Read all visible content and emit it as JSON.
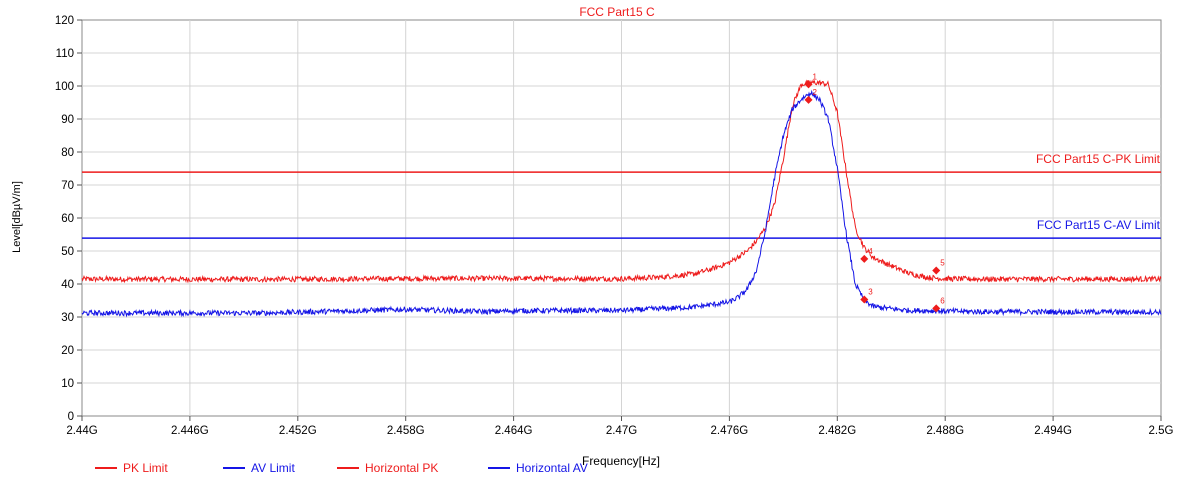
{
  "chart_data": {
    "type": "line",
    "title": "FCC Part15 C",
    "xlabel": "Frequency[Hz]",
    "ylabel": "Level[dBµV/m]",
    "x_ticks": [
      "2.44G",
      "2.446G",
      "2.452G",
      "2.458G",
      "2.464G",
      "2.47G",
      "2.476G",
      "2.482G",
      "2.488G",
      "2.494G",
      "2.5G"
    ],
    "y_ticks": [
      "0",
      "10",
      "20",
      "30",
      "40",
      "50",
      "60",
      "70",
      "80",
      "90",
      "100",
      "110",
      "120"
    ],
    "xlim": [
      2.44,
      2.5
    ],
    "ylim": [
      0,
      120
    ],
    "x_unit": "GHz",
    "grid": true,
    "legend_position": "bottom-left",
    "limit_lines": [
      {
        "name": "PK Limit",
        "label": "FCC Part15 C-PK Limit",
        "value": 73.9,
        "color": "#ee1c1c"
      },
      {
        "name": "AV Limit",
        "label": "FCC Part15 C-AV Limit",
        "value": 53.9,
        "color": "#1515e6"
      }
    ],
    "series": [
      {
        "name": "Horizontal PK",
        "color": "#ee1c1c",
        "x": [
          2.44,
          2.45,
          2.46,
          2.47,
          2.472,
          2.474,
          2.475,
          2.476,
          2.477,
          2.4775,
          2.478,
          2.4785,
          2.479,
          2.4795,
          2.48,
          2.4805,
          2.481,
          2.4815,
          2.482,
          2.4825,
          2.483,
          2.4835,
          2.484,
          2.485,
          2.486,
          2.487,
          2.488,
          2.49,
          2.5
        ],
        "y": [
          41.5,
          41.4,
          41.7,
          41.6,
          42,
          43,
          44.5,
          46.5,
          50,
          53,
          57,
          64,
          78,
          94,
          100.5,
          101,
          101,
          100.5,
          92,
          74,
          57,
          51,
          48,
          45.5,
          43.2,
          42,
          41.6,
          41.5,
          41.5
        ]
      },
      {
        "name": "Horizontal AV",
        "color": "#1515e6",
        "x": [
          2.44,
          2.45,
          2.458,
          2.4625,
          2.464,
          2.47,
          2.474,
          2.476,
          2.4765,
          2.477,
          2.4775,
          2.478,
          2.4785,
          2.479,
          2.4795,
          2.48,
          2.4805,
          2.481,
          2.4815,
          2.482,
          2.4825,
          2.483,
          2.4835,
          2.484,
          2.485,
          2.486,
          2.49,
          2.5
        ],
        "y": [
          31.2,
          31.2,
          32.3,
          31.6,
          31.9,
          32,
          33,
          34.5,
          36,
          38.5,
          44,
          56,
          72,
          85,
          93,
          96,
          98,
          96,
          90,
          75,
          55,
          40,
          35,
          33.2,
          32.5,
          32,
          31.6,
          31.5
        ]
      }
    ],
    "markers": [
      {
        "label": "1",
        "x": 2.4804,
        "y": 100.5,
        "series": "Horizontal PK"
      },
      {
        "label": "2",
        "x": 2.4804,
        "y": 95.8,
        "series": "Horizontal AV"
      },
      {
        "label": "3",
        "x": 2.4835,
        "y": 35.3,
        "series": "Horizontal AV"
      },
      {
        "label": "4",
        "x": 2.4835,
        "y": 47.6,
        "series": "Horizontal PK"
      },
      {
        "label": "5",
        "x": 2.4875,
        "y": 44.1,
        "series": "Horizontal PK"
      },
      {
        "label": "6",
        "x": 2.4875,
        "y": 32.6,
        "series": "Horizontal AV"
      }
    ]
  },
  "legend": {
    "items": [
      {
        "label": "PK Limit",
        "color": "#ee1c1c"
      },
      {
        "label": "AV Limit",
        "color": "#1515e6"
      },
      {
        "label": "Horizontal PK",
        "color": "#ee1c1c"
      },
      {
        "label": "Horizontal AV",
        "color": "#1515e6"
      }
    ]
  }
}
